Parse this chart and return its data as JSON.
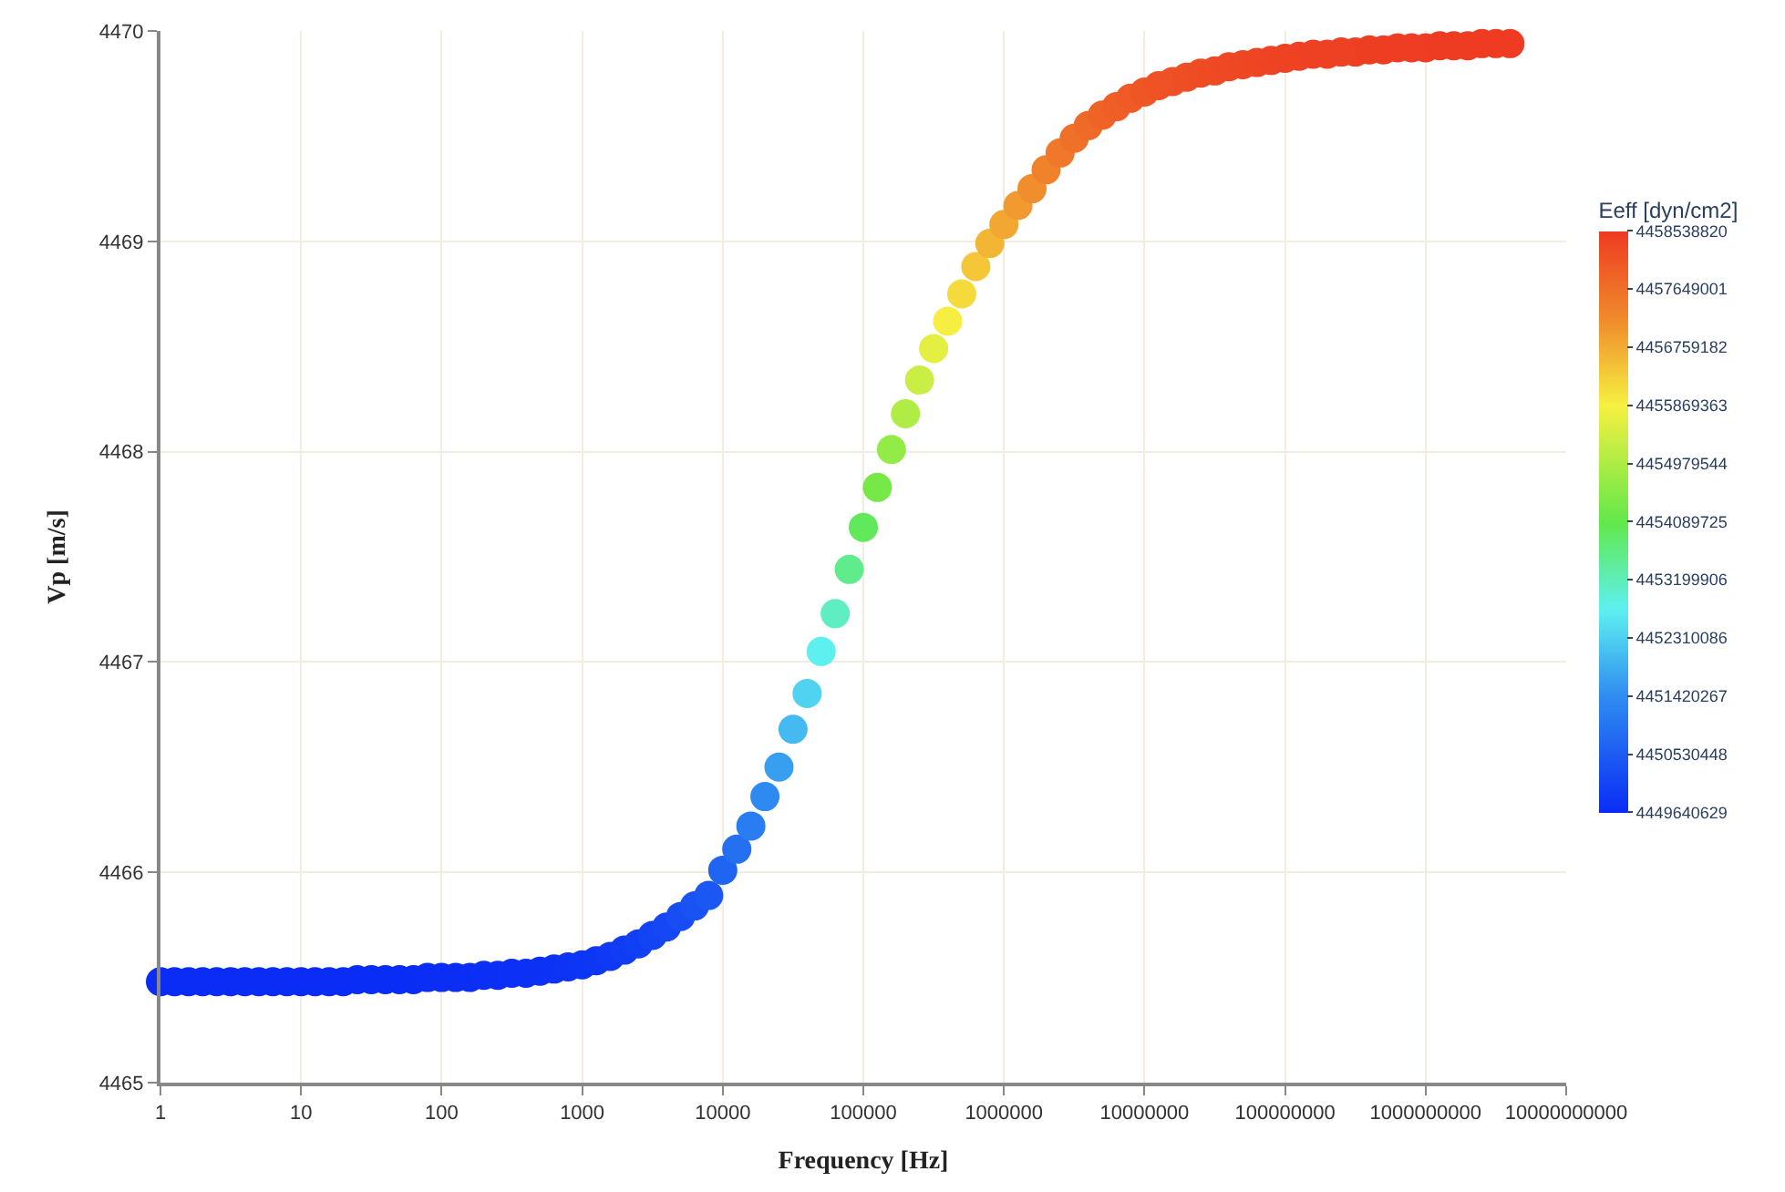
{
  "chart_data": {
    "type": "scatter",
    "xlabel": "Frequency [Hz]",
    "ylabel": "Vp [m/s]",
    "clabel": "Eeff [dyn/cm2]",
    "x": [
      1,
      1.259,
      1.585,
      1.995,
      2.512,
      3.162,
      3.981,
      5.012,
      6.31,
      7.943,
      10,
      12.59,
      15.85,
      19.95,
      25.12,
      31.62,
      39.81,
      50.12,
      63.1,
      79.43,
      100,
      125.9,
      158.5,
      199.5,
      251.2,
      316.2,
      398.1,
      501.2,
      631,
      794.3,
      1000,
      1259,
      1585,
      1995,
      2512,
      3162,
      3981,
      5012,
      6310,
      7943,
      10000.0,
      12590.0,
      15850.0,
      19950.0,
      25120.0,
      31620.0,
      39810.0,
      50120.0,
      63100.0,
      79430.0,
      100000.0,
      125900.0,
      158500.0,
      199500.0,
      251200.0,
      316200.0,
      398100.0,
      501200.0,
      631000.0,
      794300.0,
      1000000.0,
      1259000.0,
      1585000.0,
      1995000.0,
      2512000.0,
      3162000.0,
      3981000.0,
      5012000.0,
      6310000.0,
      7943000.0,
      10000000.0,
      12590000.0,
      15850000.0,
      19950000.0,
      25120000.0,
      31620000.0,
      39810000.0,
      50120000.0,
      63100000.0,
      79430000.0,
      100000000.0,
      125900000.0,
      158500000.0,
      199500000.0,
      251200000.0,
      316200000.0,
      398100000.0,
      501200000.0,
      631000000.0,
      794300000.0,
      1000000000.0,
      1259000000.0,
      1585000000.0,
      1995000000.0,
      2512000000.0,
      3162000000.0,
      3981000000.0
    ],
    "values": [
      4465.48,
      4465.48,
      4465.48,
      4465.48,
      4465.48,
      4465.48,
      4465.48,
      4465.48,
      4465.48,
      4465.48,
      4465.48,
      4465.48,
      4465.48,
      4465.48,
      4465.49,
      4465.49,
      4465.49,
      4465.49,
      4465.49,
      4465.5,
      4465.5,
      4465.5,
      4465.5,
      4465.51,
      4465.51,
      4465.52,
      4465.52,
      4465.53,
      4465.54,
      4465.55,
      4465.56,
      4465.58,
      4465.6,
      4465.63,
      4465.66,
      4465.7,
      4465.74,
      4465.79,
      4465.84,
      4465.89,
      4466.01,
      4466.11,
      4466.22,
      4466.36,
      4466.5,
      4466.68,
      4466.85,
      4467.05,
      4467.23,
      4467.44,
      4467.64,
      4467.83,
      4468.01,
      4468.18,
      4468.34,
      4468.49,
      4468.62,
      4468.75,
      4468.88,
      4468.99,
      4469.08,
      4469.17,
      4469.25,
      4469.34,
      4469.42,
      4469.49,
      4469.55,
      4469.6,
      4469.64,
      4469.68,
      4469.71,
      4469.74,
      4469.76,
      4469.78,
      4469.8,
      4469.81,
      4469.83,
      4469.84,
      4469.85,
      4469.86,
      4469.87,
      4469.88,
      4469.89,
      4469.89,
      4469.9,
      4469.9,
      4469.91,
      4469.91,
      4469.92,
      4469.92,
      4469.92,
      4469.93,
      4469.93,
      4469.93,
      4469.94,
      4469.94,
      4469.94
    ],
    "cvalues": [
      4449640000,
      4449640000,
      4449640000,
      4449640000,
      4449640000,
      4449640000,
      4449640000,
      4449640000,
      4449640000,
      4449640000,
      4449640000,
      4449640000,
      4449640000,
      4449640000,
      4449660000,
      4449660000,
      4449660000,
      4449660000,
      4449660000,
      4449680000,
      4449680000,
      4449680000,
      4449680000,
      4449700000,
      4449700000,
      4449720000,
      4449720000,
      4449740000,
      4449760000,
      4449780000,
      4449800000,
      4449840000,
      4449880000,
      4449940000,
      4450000000,
      4450080000,
      4450160000,
      4450260000,
      4450360000,
      4450460000,
      4450700000,
      4450900000,
      4451120000,
      4451390000,
      4451670000,
      4452030000,
      4452370000,
      4452770000,
      4453130000,
      4453550000,
      4453950000,
      4454330000,
      4454680000,
      4455020000,
      4455340000,
      4455640000,
      4455900000,
      4456160000,
      4456420000,
      4456640000,
      4456820000,
      4457000000,
      4457160000,
      4457340000,
      4457500000,
      4457640000,
      4457760000,
      4457860000,
      4457940000,
      4458020000,
      4458080000,
      4458140000,
      4458180000,
      4458220000,
      4458260000,
      4458280000,
      4458320000,
      4458340000,
      4458360000,
      4458380000,
      4458400000,
      4458420000,
      4458440000,
      4458440000,
      4458460000,
      4458460000,
      4458480000,
      4458480000,
      4458500000,
      4458500000,
      4458500000,
      4458520000,
      4458520000,
      4458520000,
      4458540000,
      4458540000,
      4458540000
    ],
    "log": "x",
    "xlim": [
      1,
      10000000000
    ],
    "ylim": [
      4465,
      4470
    ],
    "xticks": [
      1,
      10,
      100,
      1000,
      10000,
      100000,
      1000000,
      10000000,
      100000000,
      1000000000,
      10000000000
    ],
    "yticks": [
      4465,
      4466,
      4467,
      4468,
      4469,
      4470
    ],
    "clim": [
      4449640629,
      4458538820
    ],
    "cticks": [
      4449640629,
      4450530448,
      4451420267,
      4452310086,
      4453199906,
      4454089725,
      4454979544,
      4455869363,
      4456759182,
      4457649001,
      4458538820
    ],
    "grid": true,
    "marker": "circle"
  }
}
